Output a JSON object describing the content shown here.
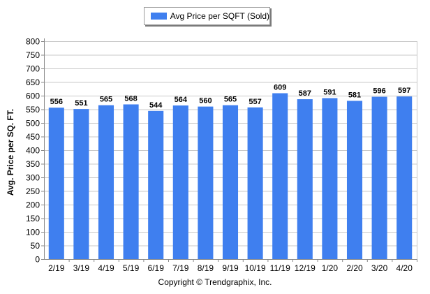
{
  "chart_data": {
    "type": "bar",
    "legend": {
      "label": "Avg Price per SQFT (Sold)",
      "placement": "top-center"
    },
    "series": [
      {
        "name": "Avg Price per SQFT (Sold)",
        "color": "#3f7fef",
        "values": [
          556,
          551,
          565,
          568,
          544,
          564,
          560,
          565,
          557,
          609,
          587,
          591,
          581,
          596,
          597
        ]
      }
    ],
    "categories": [
      "2/19",
      "3/19",
      "4/19",
      "5/19",
      "6/19",
      "7/19",
      "8/19",
      "9/19",
      "10/19",
      "11/19",
      "12/19",
      "1/20",
      "2/20",
      "3/20",
      "4/20"
    ],
    "ylabel": "Avg. Price per SQ. FT.",
    "xlabel": "",
    "ylim": [
      0,
      800
    ],
    "yticks": [
      0,
      50,
      100,
      150,
      200,
      250,
      300,
      350,
      400,
      450,
      500,
      550,
      600,
      650,
      700,
      750,
      800
    ],
    "grid": true,
    "footer": "Copyright © Trendgraphix, Inc."
  }
}
